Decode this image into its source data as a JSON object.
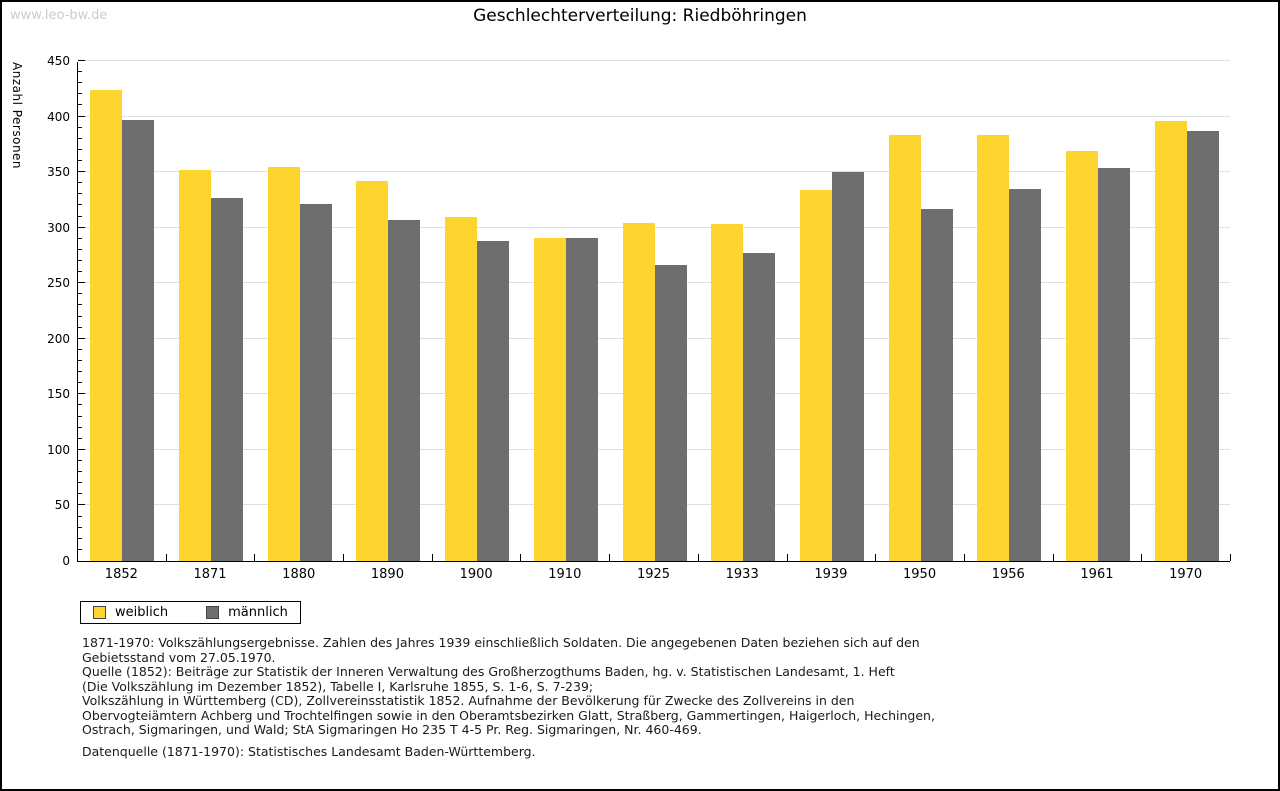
{
  "watermark": "www.leo-bw.de",
  "title": "Geschlechterverteilung: Riedböhringen",
  "chart_data": {
    "type": "bar",
    "title": "Geschlechterverteilung: Riedböhringen",
    "xlabel": "",
    "ylabel": "Anzahl Personen",
    "ylim": [
      0,
      450
    ],
    "y_major_step": 50,
    "y_minor_step": 10,
    "grid": true,
    "legend_position": "bottom-left",
    "categories": [
      "1852",
      "1871",
      "1880",
      "1890",
      "1900",
      "1910",
      "1925",
      "1933",
      "1939",
      "1950",
      "1956",
      "1961",
      "1970"
    ],
    "series": [
      {
        "name": "weiblich",
        "color": "#FCD52F",
        "values": [
          424,
          352,
          355,
          342,
          310,
          291,
          304,
          303,
          334,
          383,
          383,
          369,
          396
        ]
      },
      {
        "name": "männlich",
        "color": "#6E6E6E",
        "values": [
          397,
          327,
          321,
          307,
          288,
          291,
          266,
          277,
          350,
          317,
          335,
          354,
          387
        ]
      }
    ]
  },
  "legend": [
    {
      "label": "weiblich",
      "color": "#FCD52F"
    },
    {
      "label": "männlich",
      "color": "#6E6E6E"
    }
  ],
  "footnotes": [
    "1871-1970: Volkszählungsergebnisse. Zahlen des Jahres 1939 einschließlich Soldaten. Die angegebenen Daten beziehen sich auf den",
    "Gebietsstand vom 27.05.1970.",
    "Quelle (1852): Beiträge zur Statistik der Inneren Verwaltung des Großherzogthums Baden, hg. v. Statistischen Landesamt, 1. Heft",
    "(Die Volkszählung im Dezember 1852), Tabelle I, Karlsruhe 1855, S. 1-6, S. 7-239;",
    "Volkszählung in Württemberg (CD), Zollvereinsstatistik 1852. Aufnahme der Bevölkerung für Zwecke des Zollvereins in den",
    "Obervogteiämtern Achberg und Trochtelfingen sowie in den Oberamtsbezirken Glatt, Straßberg, Gammertingen, Haigerloch, Hechingen,",
    "Ostrach, Sigmaringen, und Wald; StA Sigmaringen Ho 235 T 4-5 Pr. Reg. Sigmaringen, Nr. 460-469."
  ],
  "data_source": "Datenquelle (1871-1970): Statistisches Landesamt Baden-Württemberg."
}
